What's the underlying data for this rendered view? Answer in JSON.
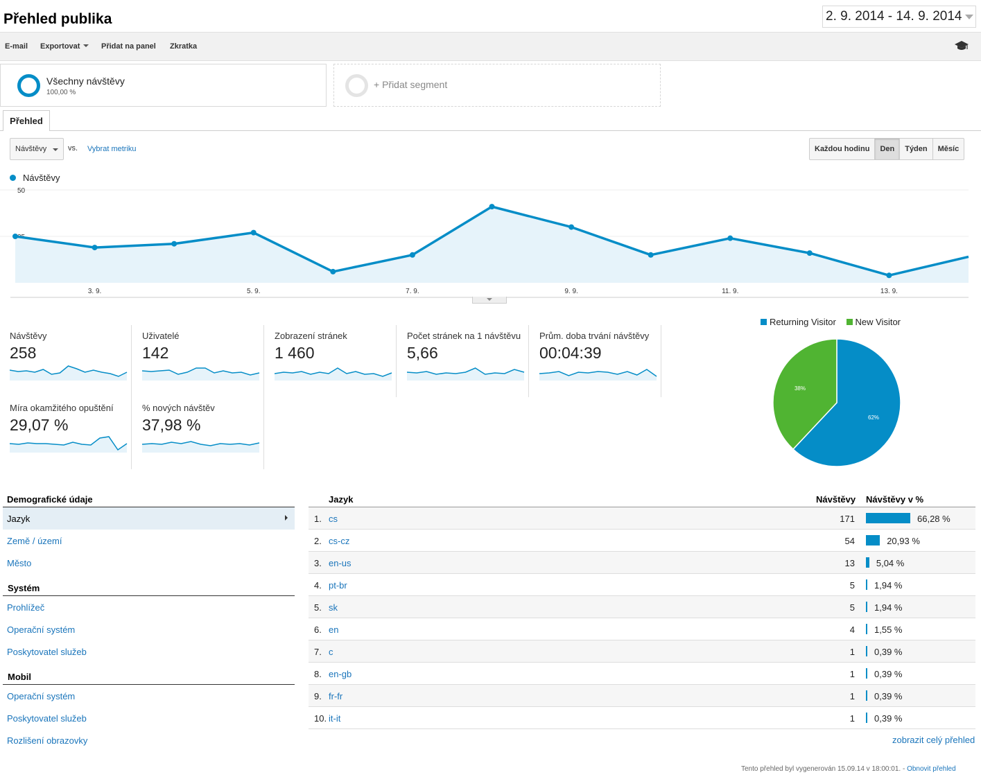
{
  "header": {
    "title": "Přehled publika",
    "date_range": "2. 9. 2014 - 14. 9. 2014"
  },
  "toolbar": {
    "email": "E-mail",
    "export": "Exportovat",
    "add_to_dashboard": "Přidat na panel",
    "shortcut": "Zkratka",
    "help_icon": "graduation-cap-icon"
  },
  "segments": {
    "active": {
      "name": "Všechny návštěvy",
      "percent": "100,00 %"
    },
    "add": "+ Přidat segment"
  },
  "tabs": [
    "Přehled"
  ],
  "metric_picker": {
    "selected": "Návštěvy",
    "vs": "vs.",
    "choose": "Vybrat metriku"
  },
  "granularity": {
    "options": [
      "Každou hodinu",
      "Den",
      "Týden",
      "Měsíc"
    ],
    "active": "Den"
  },
  "chart_legend": "Návštěvy",
  "chart_data": {
    "type": "area",
    "series": [
      {
        "name": "Návštěvy",
        "values": [
          25,
          19,
          21,
          27,
          6,
          15,
          41,
          30,
          15,
          24,
          16,
          4,
          14
        ]
      }
    ],
    "x": [
      "2. 9.",
      "3. 9.",
      "4. 9.",
      "5. 9.",
      "6. 9.",
      "7. 9.",
      "8. 9.",
      "9. 9.",
      "10. 9.",
      "11. 9.",
      "12. 9.",
      "13. 9.",
      "14. 9."
    ],
    "x_tick_labels": [
      "3. 9.",
      "5. 9.",
      "7. 9.",
      "9. 9.",
      "11. 9.",
      "13. 9."
    ],
    "y_ticks": [
      "25",
      "50"
    ],
    "ylim": [
      0,
      50
    ],
    "color": "#058dc7",
    "fill": "#e6f3fa",
    "grid": true
  },
  "scorecards": [
    {
      "label": "Návštěvy",
      "value": "258",
      "spark": [
        15,
        13,
        14,
        12,
        16,
        9,
        11,
        21,
        17,
        12,
        15,
        12,
        10,
        6,
        12
      ]
    },
    {
      "label": "Uživatelé",
      "value": "142",
      "spark": [
        14,
        13,
        14,
        15,
        9,
        12,
        18,
        18,
        11,
        14,
        11,
        12,
        8,
        11
      ]
    },
    {
      "label": "Zobrazení stránek",
      "value": "1 460",
      "spark": [
        10,
        12,
        11,
        13,
        9,
        12,
        10,
        18,
        10,
        13,
        9,
        10,
        6,
        11
      ]
    },
    {
      "label": "Počet stránek na 1 návštěvu",
      "value": "5,66",
      "spark": [
        12,
        11,
        13,
        9,
        11,
        10,
        12,
        18,
        9,
        11,
        10,
        16,
        12
      ]
    },
    {
      "label": "Prům. doba trvání návštěvy",
      "value": "00:04:39",
      "spark": [
        10,
        11,
        13,
        7,
        12,
        11,
        13,
        12,
        9,
        13,
        8,
        16,
        6
      ]
    },
    {
      "label": "Míra okamžitého opuštění",
      "value": "29,07 %",
      "spark": [
        13,
        12,
        14,
        13,
        13,
        12,
        11,
        15,
        12,
        11,
        21,
        23,
        4,
        13
      ]
    },
    {
      "label": "% nových návštěv",
      "value": "37,98 %",
      "spark": [
        12,
        13,
        12,
        15,
        13,
        16,
        12,
        10,
        13,
        12,
        13,
        11,
        14
      ]
    }
  ],
  "pie": {
    "legend": [
      {
        "name": "Returning Visitor",
        "color": "#058dc7"
      },
      {
        "name": "New Visitor",
        "color": "#50b432"
      }
    ],
    "slices": [
      {
        "name": "Returning Visitor",
        "value": 62,
        "label": "62%",
        "color": "#058dc7"
      },
      {
        "name": "New Visitor",
        "value": 38,
        "label": "38%",
        "color": "#50b432"
      }
    ]
  },
  "demographics": {
    "header": "Demografické údaje",
    "items": [
      "Jazyk",
      "Země / území",
      "Město"
    ],
    "system_header": "Systém",
    "system_items": [
      "Prohlížeč",
      "Operační systém",
      "Poskytovatel služeb"
    ],
    "mobile_header": "Mobil",
    "mobile_items": [
      "Operační systém",
      "Poskytovatel služeb",
      "Rozlišení obrazovky"
    ]
  },
  "table": {
    "col_dimension": "Jazyk",
    "col_visits": "Návštěvy",
    "col_pct": "Návštěvy v %",
    "rows": [
      {
        "idx": "1.",
        "lang": "cs",
        "visits": "171",
        "pct": "66,28 %",
        "share": 66.28
      },
      {
        "idx": "2.",
        "lang": "cs-cz",
        "visits": "54",
        "pct": "20,93 %",
        "share": 20.93
      },
      {
        "idx": "3.",
        "lang": "en-us",
        "visits": "13",
        "pct": "5,04 %",
        "share": 5.04
      },
      {
        "idx": "4.",
        "lang": "pt-br",
        "visits": "5",
        "pct": "1,94 %",
        "share": 1.94
      },
      {
        "idx": "5.",
        "lang": "sk",
        "visits": "5",
        "pct": "1,94 %",
        "share": 1.94
      },
      {
        "idx": "6.",
        "lang": "en",
        "visits": "4",
        "pct": "1,55 %",
        "share": 1.55
      },
      {
        "idx": "7.",
        "lang": "c",
        "visits": "1",
        "pct": "0,39 %",
        "share": 0.39
      },
      {
        "idx": "8.",
        "lang": "en-gb",
        "visits": "1",
        "pct": "0,39 %",
        "share": 0.39
      },
      {
        "idx": "9.",
        "lang": "fr-fr",
        "visits": "1",
        "pct": "0,39 %",
        "share": 0.39
      },
      {
        "idx": "10.",
        "lang": "it-it",
        "visits": "1",
        "pct": "0,39 %",
        "share": 0.39
      }
    ],
    "view_full": "zobrazit celý přehled"
  },
  "footer": {
    "generated": "Tento přehled byl vygenerován 15.09.14 v 18:00:01. -",
    "refresh": "Obnovit přehled"
  }
}
